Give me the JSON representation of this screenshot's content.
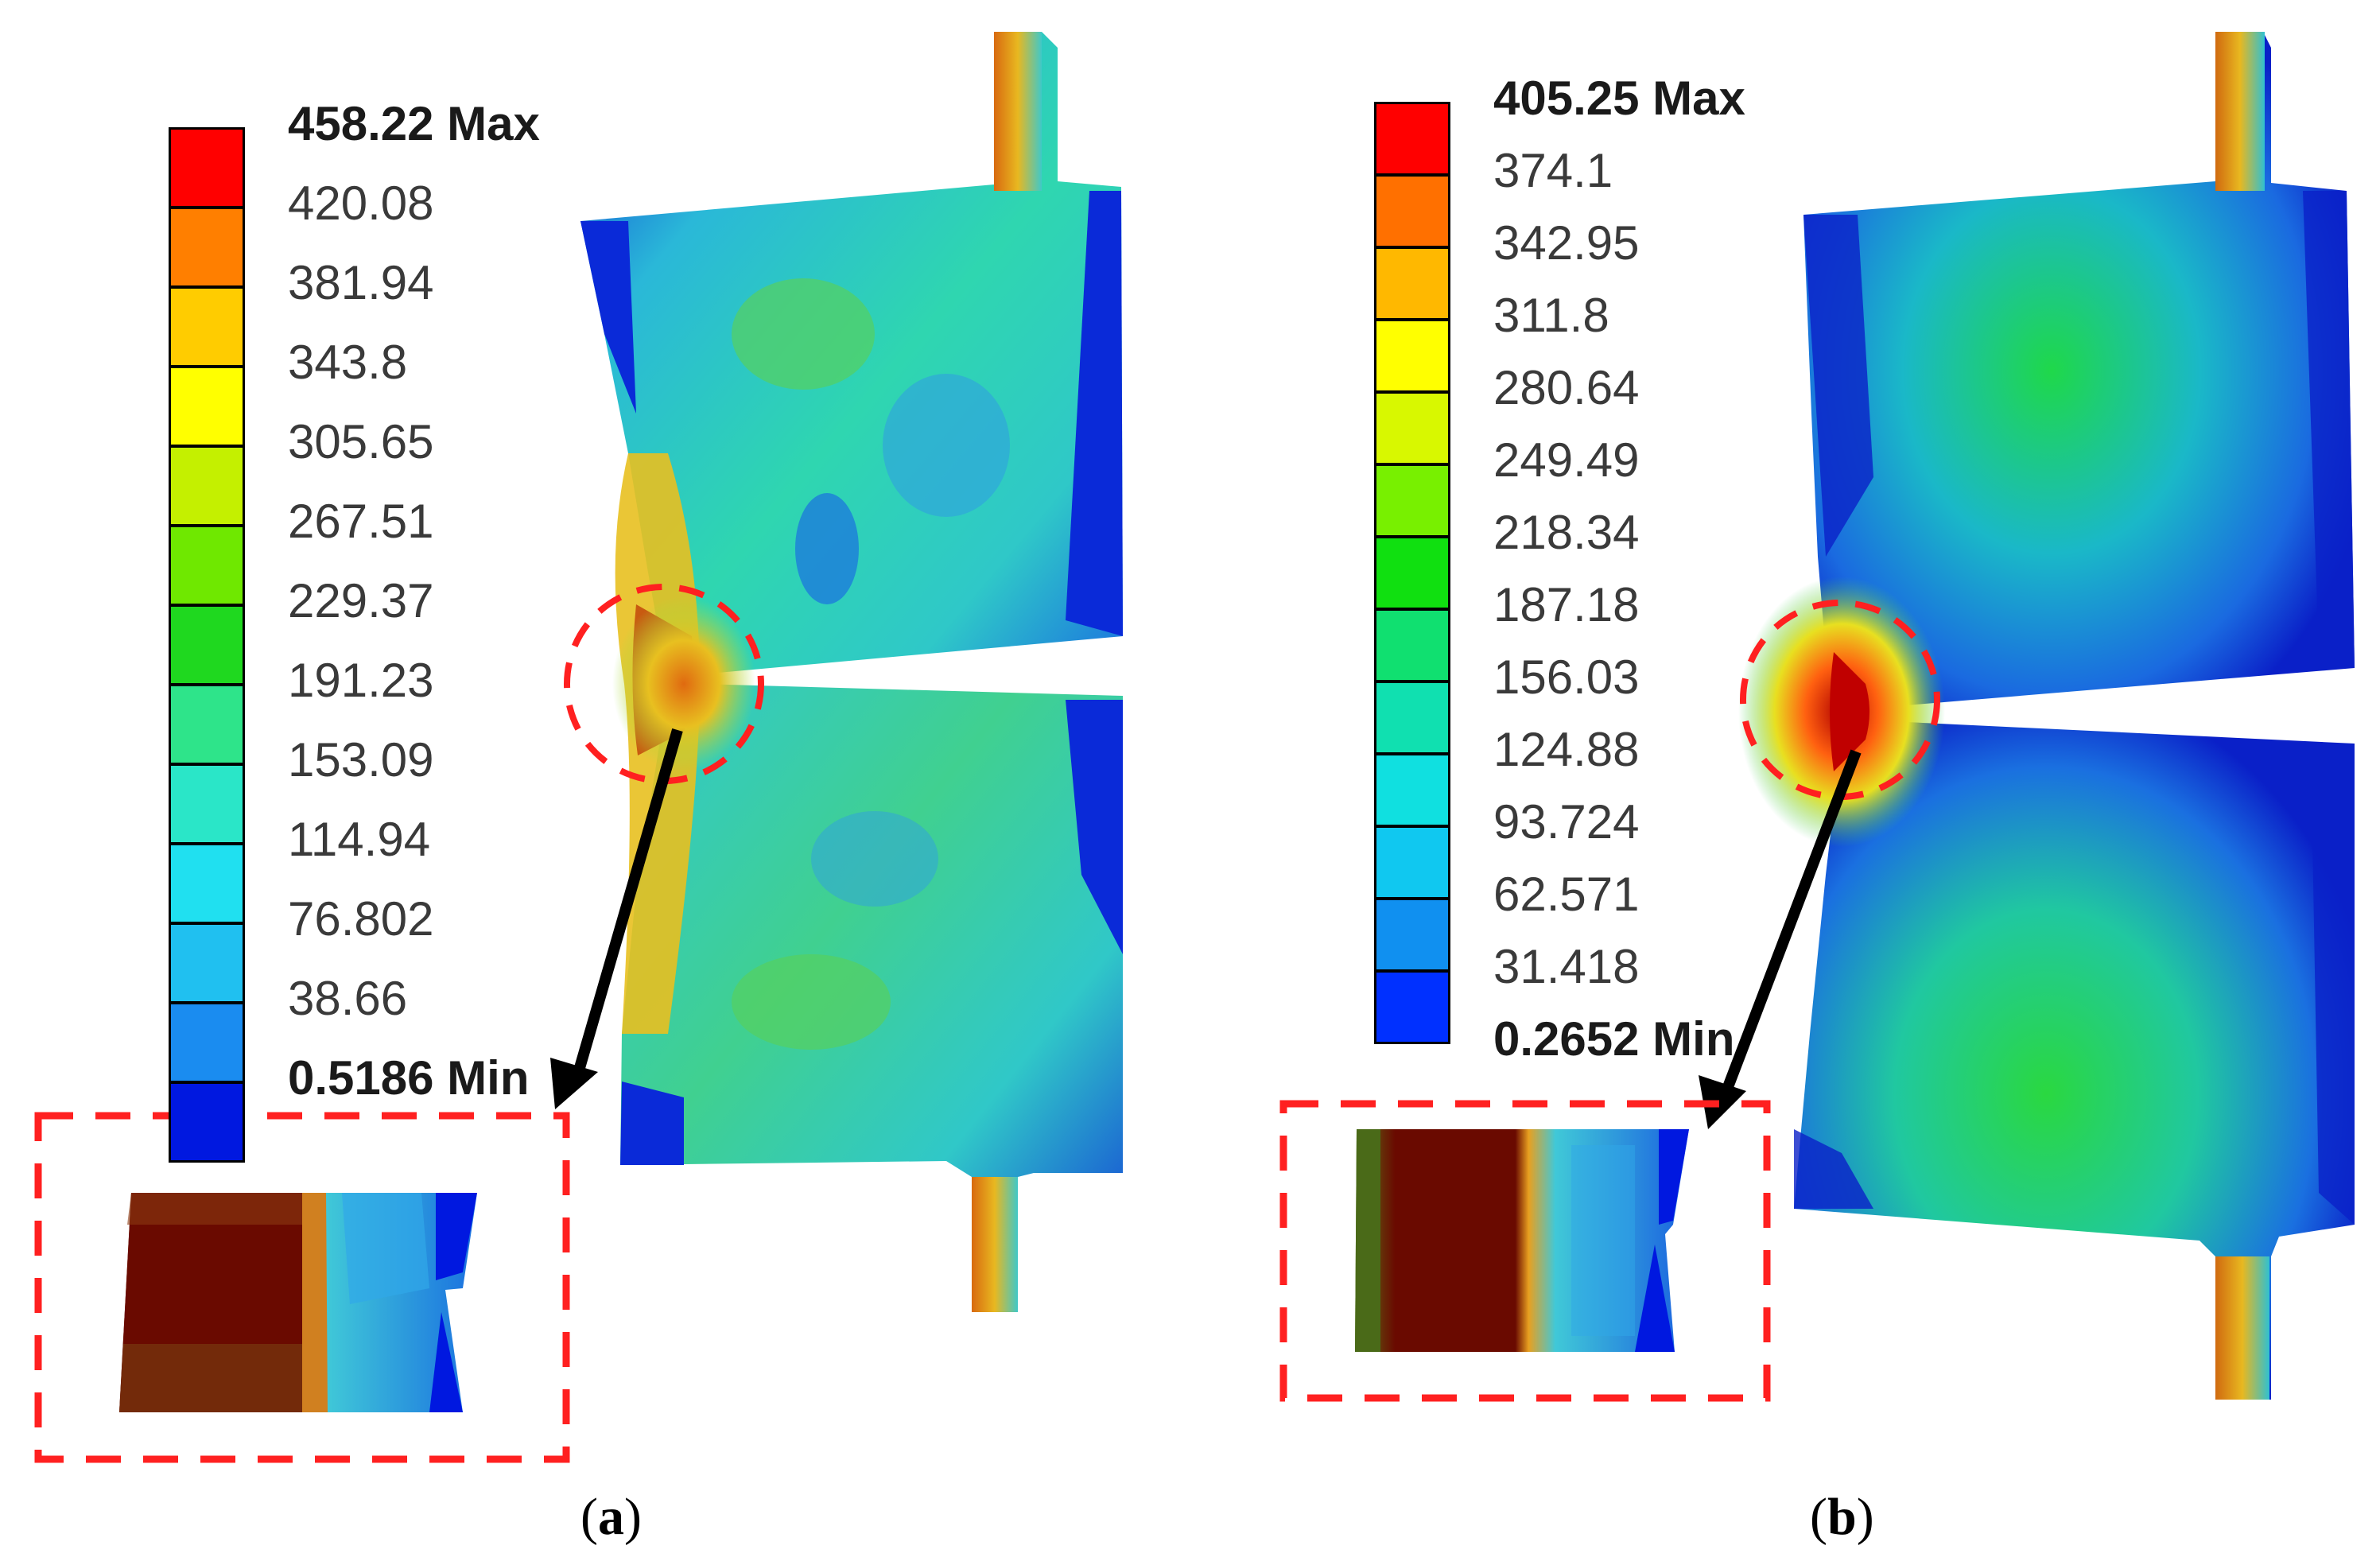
{
  "panels": [
    {
      "id": "a",
      "caption": "a",
      "legend": {
        "max_label": "458.22 Max",
        "min_label": "0.5186 Min",
        "values": [
          "420.08",
          "381.94",
          "343.8",
          "305.65",
          "267.51",
          "229.37",
          "191.23",
          "153.09",
          "114.94",
          "76.802",
          "38.66"
        ],
        "colors": [
          "#ff0000",
          "#ff7f00",
          "#ffcc00",
          "#ffff00",
          "#c4f000",
          "#6fe800",
          "#1fd81f",
          "#2ee48a",
          "#2ae6c8",
          "#20e0f0",
          "#20c0f0",
          "#1a8cf0",
          "#0018e0"
        ]
      }
    },
    {
      "id": "b",
      "caption": "b",
      "legend": {
        "max_label": "405.25 Max",
        "min_label": "0.2652 Min",
        "values": [
          "374.1",
          "342.95",
          "311.8",
          "280.64",
          "249.49",
          "218.34",
          "187.18",
          "156.03",
          "124.88",
          "93.724",
          "62.571",
          "31.418"
        ],
        "colors": [
          "#ff0000",
          "#ff7000",
          "#ffb800",
          "#ffff00",
          "#d8f800",
          "#78f000",
          "#10e010",
          "#10e070",
          "#10e0b0",
          "#10e0e0",
          "#10c8f0",
          "#1090f0",
          "#0030ff"
        ]
      }
    }
  ]
}
